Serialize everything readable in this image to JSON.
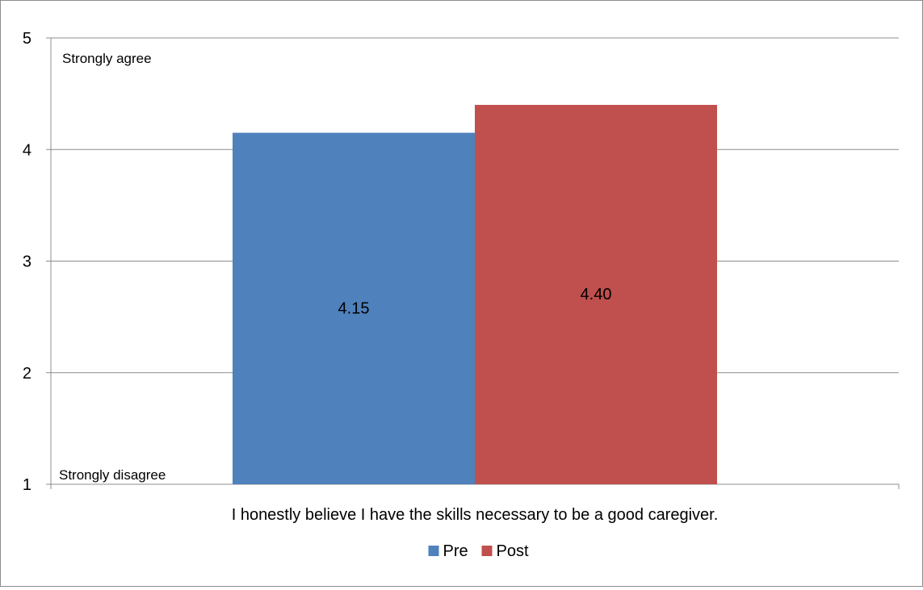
{
  "chart_data": {
    "type": "bar",
    "categories": [
      "I honestly believe I have the skills necessary to be a good caregiver."
    ],
    "series": [
      {
        "name": "Pre",
        "values": [
          4.15
        ],
        "label": "4.15",
        "color": "#4f81bd"
      },
      {
        "name": "Post",
        "values": [
          4.4
        ],
        "label": "4.40",
        "color": "#c0504d"
      }
    ],
    "ylim": [
      1,
      5
    ],
    "yticks": [
      1,
      2,
      3,
      4,
      5
    ],
    "y_tick_labels": [
      "1",
      "2",
      "3",
      "4",
      "5"
    ],
    "annotations": {
      "top": "Strongly agree",
      "bottom": "Strongly disagree"
    },
    "grid": true,
    "legend": "bottom",
    "title": "",
    "xlabel": "",
    "ylabel": ""
  }
}
